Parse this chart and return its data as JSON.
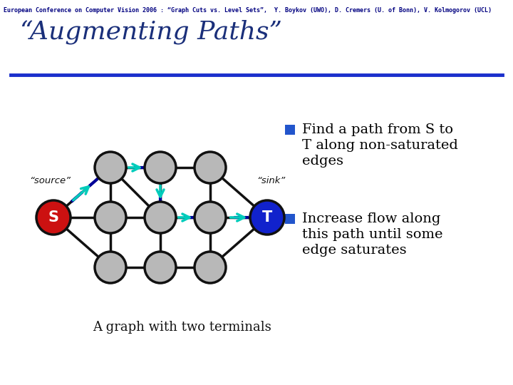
{
  "title": "“Augmenting Paths”",
  "header": "European Conference on Computer Vision 2006 : “Graph Cuts vs. Level Sets”,  Y. Boykov (UWO), D. Cremers (U. of Bonn), V. Kolmogorov (UCL)",
  "caption": "A graph with two terminals",
  "bullet1_line1": "Find a path from S to",
  "bullet1_line2": "T along non-saturated",
  "bullet1_line3": "edges",
  "bullet2_line1": "Increase flow along",
  "bullet2_line2": "this path until some",
  "bullet2_line3": "edge saturates",
  "bg_color": "#ffffff",
  "title_color": "#1a2f7a",
  "header_color": "#000080",
  "bullet_color": "#000000",
  "bullet_marker_color": "#2255cc",
  "node_color": "#b8b8b8",
  "node_edge_color": "#111111",
  "S_color": "#cc1111",
  "T_color": "#1122cc",
  "edge_color": "#111111",
  "dashed_color": "#000099",
  "arrow_color": "#00ccbb",
  "title_line_color": "#1a2fcc",
  "source_label": "“source”",
  "sink_label": "“sink”"
}
